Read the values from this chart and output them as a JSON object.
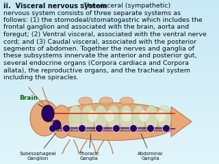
{
  "title_text": "ii.  Visceral nervous system",
  "colon_body": ": The visceral (sympathetic) nervous system consists of three separate systems as follows: (1) the stomodeal/stomatogastric which includes the frontal ganglion and associated with the brain, aorta and foregut; (2) Ventral visceral, associated with the ventral nerve cord; and (3) Caudal visceral, associated with the posterior segments of abdomen. Together the nerves and ganglia of these subsystems innervate the anterior and posterior gut, several endocrine organs (Corpora cardiaca and Corpora allata), the reproductive organs, and the tracheal system including the spiracles.",
  "label_brain": "Brain",
  "label_subes": "Subesophageal\nGanglion",
  "label_thoracic": "Thoracic\nGanglia",
  "label_abdominal": "Abdominal\nGanglia",
  "body_fontsize": 6.8,
  "title_fontsize": 7.0,
  "text_color": "#111111",
  "ganglion_color": "#2a006a",
  "nerve_cord_color": "#2a006a",
  "brain_color": "#2a006a",
  "body_color": "#e8a878",
  "body_edge": "#c07848",
  "label_color_brain": "#006600",
  "label_color_others": "#111111",
  "bg_top": "#cce8f4",
  "bg_bottom": "#e8f4fa",
  "segment_color": "#c8dfc0",
  "dorsal_color": "#cc2200"
}
